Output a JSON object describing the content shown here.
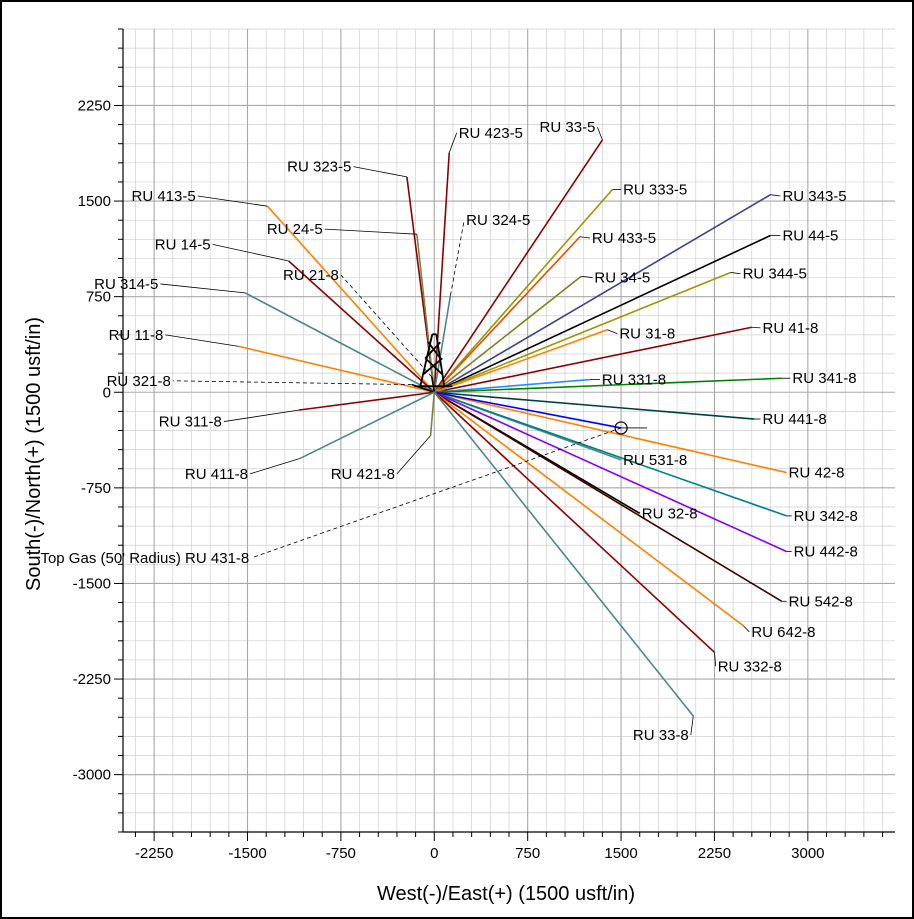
{
  "chart_data": {
    "type": "line",
    "title": "",
    "xlabel": "West(-)/East(+) (1500 usft/in)",
    "ylabel": "South(-)/North(+) (1500 usft/in)",
    "xlim": [
      -2500,
      3700
    ],
    "ylim": [
      -3450,
      2850
    ],
    "grid": true,
    "x_ticks": [
      "-2250",
      "-1500",
      "-750",
      "0",
      "750",
      "1500",
      "2250",
      "3000"
    ],
    "y_ticks": [
      "2250",
      "1500",
      "750",
      "0",
      "-750",
      "-1500",
      "-2250",
      "-3000"
    ],
    "series": [
      {
        "name": "RU 423-5",
        "color": "#8b0000",
        "points": [
          [
            0,
            0
          ],
          [
            120,
            1880
          ]
        ],
        "label_at": [
          180,
          2035
        ]
      },
      {
        "name": "RU 33-5",
        "color": "#8b0000",
        "points": [
          [
            0,
            0
          ],
          [
            1350,
            1980
          ]
        ],
        "label_at": [
          1310,
          2080
        ]
      },
      {
        "name": "RU 323-5",
        "color": "#8b0000",
        "points": [
          [
            0,
            0
          ],
          [
            -220,
            1690
          ]
        ],
        "label_at": [
          -650,
          1770
        ]
      },
      {
        "name": "RU 333-5",
        "color": "#999900",
        "points": [
          [
            0,
            0
          ],
          [
            1430,
            1590
          ]
        ],
        "label_at": [
          1500,
          1590
        ]
      },
      {
        "name": "RU 413-5",
        "color": "#ff8000",
        "points": [
          [
            0,
            0
          ],
          [
            -1340,
            1460
          ]
        ],
        "label_at": [
          -1900,
          1540
        ]
      },
      {
        "name": "RU 343-5",
        "color": "#404090",
        "points": [
          [
            0,
            0
          ],
          [
            2700,
            1550
          ]
        ],
        "label_at": [
          2780,
          1540
        ]
      },
      {
        "name": "RU 24-5",
        "color": "#808040",
        "points": [
          [
            0,
            0
          ],
          [
            -140,
            1240
          ]
        ],
        "label_at": [
          -880,
          1280
        ]
      },
      {
        "name": "RU 324-5",
        "color": "#4a8888",
        "points": [
          [
            0,
            0
          ],
          [
            130,
            760
          ]
        ],
        "label_at": [
          240,
          1350
        ]
      },
      {
        "name": "RU 433-5",
        "color": "#e05000",
        "points": [
          [
            0,
            0
          ],
          [
            1170,
            1220
          ]
        ],
        "label_at": [
          1250,
          1210
        ]
      },
      {
        "name": "RU 44-5",
        "color": "#000000",
        "points": [
          [
            0,
            0
          ],
          [
            2700,
            1230
          ]
        ],
        "label_at": [
          2780,
          1230
        ]
      },
      {
        "name": "RU 14-5",
        "color": "#8b0000",
        "points": [
          [
            0,
            0
          ],
          [
            -1170,
            1030
          ]
        ],
        "label_at": [
          -1780,
          1160
        ]
      },
      {
        "name": "RU 34-5",
        "color": "#808020",
        "points": [
          [
            0,
            0
          ],
          [
            1180,
            910
          ]
        ],
        "label_at": [
          1270,
          900
        ]
      },
      {
        "name": "RU 344-5",
        "color": "#999900",
        "points": [
          [
            0,
            0
          ],
          [
            2380,
            940
          ]
        ],
        "label_at": [
          2460,
          930
        ]
      },
      {
        "name": "RU 21-8",
        "color": "#000000",
        "points": [
          [
            0,
            0
          ],
          [
            -20,
            120
          ]
        ],
        "label_at": [
          -750,
          920
        ]
      },
      {
        "name": "RU 314-5",
        "color": "#4a8888",
        "points": [
          [
            0,
            0
          ],
          [
            -1520,
            780
          ]
        ],
        "label_at": [
          -2200,
          850
        ]
      },
      {
        "name": "RU 41-8",
        "color": "#8b0000",
        "points": [
          [
            0,
            0
          ],
          [
            2550,
            510
          ]
        ],
        "label_at": [
          2620,
          505
        ]
      },
      {
        "name": "RU 31-8",
        "color": "#ff8000",
        "points": [
          [
            0,
            0
          ],
          [
            1390,
            490
          ]
        ],
        "label_at": [
          1470,
          460
        ]
      },
      {
        "name": "RU 11-8",
        "color": "#ff8000",
        "points": [
          [
            0,
            0
          ],
          [
            -1570,
            360
          ]
        ],
        "label_at": [
          -2160,
          450
        ]
      },
      {
        "name": "RU 321-8",
        "color": "#000000",
        "points": [
          [
            0,
            0
          ],
          [
            -180,
            60
          ]
        ],
        "label_at": [
          -2100,
          90
        ]
      },
      {
        "name": "RU 331-8",
        "color": "#1e90ff",
        "points": [
          [
            0,
            0
          ],
          [
            1250,
            100
          ]
        ],
        "label_at": [
          1330,
          100
        ]
      },
      {
        "name": "RU 341-8",
        "color": "#008000",
        "points": [
          [
            0,
            0
          ],
          [
            2790,
            110
          ]
        ],
        "label_at": [
          2860,
          110
        ]
      },
      {
        "name": "RU 311-8",
        "color": "#8b0000",
        "points": [
          [
            0,
            0
          ],
          [
            -1090,
            -140
          ]
        ],
        "label_at": [
          -1690,
          -230
        ]
      },
      {
        "name": "RU 441-8",
        "color": "#004040",
        "points": [
          [
            0,
            0
          ],
          [
            2570,
            -210
          ]
        ],
        "label_at": [
          2620,
          -210
        ]
      },
      {
        "name": "RU 411-8",
        "color": "#4a8888",
        "points": [
          [
            0,
            0
          ],
          [
            -1080,
            -520
          ]
        ],
        "label_at": [
          -1480,
          -640
        ]
      },
      {
        "name": "RU 421-8",
        "color": "#808040",
        "points": [
          [
            0,
            0
          ],
          [
            -30,
            -340
          ]
        ],
        "label_at": [
          -300,
          -640
        ]
      },
      {
        "name": "RU 531-8",
        "color": "#4a8888",
        "points": [
          [
            0,
            0
          ],
          [
            1500,
            -530
          ]
        ],
        "label_at": [
          1500,
          -530
        ]
      },
      {
        "name": "RU 42-8",
        "color": "#ff8000",
        "points": [
          [
            0,
            0
          ],
          [
            2830,
            -630
          ]
        ],
        "label_at": [
          2830,
          -630
        ]
      },
      {
        "name": "RU 32-8",
        "color": "#000000",
        "points": [
          [
            0,
            0
          ],
          [
            1650,
            -950
          ]
        ],
        "label_at": [
          1650,
          -950
        ]
      },
      {
        "name": "RU 342-8",
        "color": "#008080",
        "points": [
          [
            0,
            0
          ],
          [
            2830,
            -970
          ]
        ],
        "label_at": [
          2870,
          -970
        ]
      },
      {
        "name": "RU 442-8",
        "color": "#8000ff",
        "points": [
          [
            0,
            0
          ],
          [
            2830,
            -1250
          ]
        ],
        "label_at": [
          2870,
          -1250
        ]
      },
      {
        "name": "Top Gas (50' Radius) RU 431-8",
        "color": "#0000ff",
        "points": [
          [
            0,
            0
          ],
          [
            1500,
            -280
          ]
        ],
        "label_at": [
          -1470,
          -1300
        ]
      },
      {
        "name": "RU 542-8",
        "color": "#400000",
        "points": [
          [
            0,
            0
          ],
          [
            2790,
            -1640
          ]
        ],
        "label_at": [
          2830,
          -1640
        ]
      },
      {
        "name": "RU 642-8",
        "color": "#ff8000",
        "points": [
          [
            0,
            0
          ],
          [
            2480,
            -1830
          ]
        ],
        "label_at": [
          2530,
          -1880
        ]
      },
      {
        "name": "RU 332-8",
        "color": "#8b0000",
        "points": [
          [
            0,
            0
          ],
          [
            2250,
            -2040
          ]
        ],
        "label_at": [
          2260,
          -2150
        ]
      },
      {
        "name": "RU 33-8",
        "color": "#4a8888",
        "points": [
          [
            0,
            0
          ],
          [
            2080,
            -2540
          ]
        ],
        "label_at": [
          2060,
          -2690
        ]
      }
    ]
  }
}
